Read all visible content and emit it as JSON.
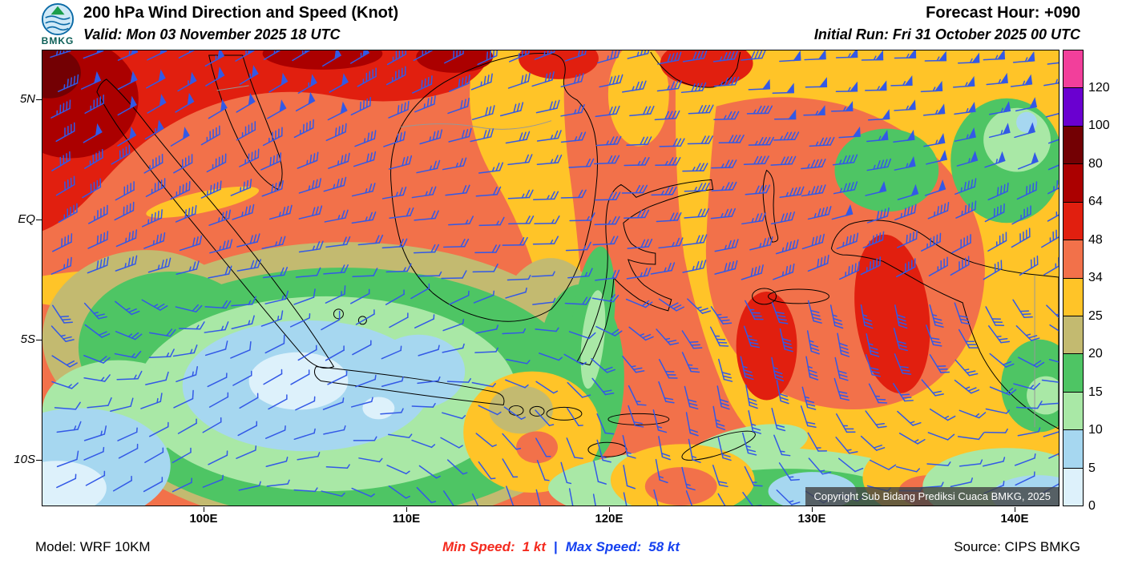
{
  "header": {
    "logo_text": "BMKG",
    "title": "200 hPa Wind Direction and Speed (Knot)",
    "valid": "Valid: Mon 03 November 2025 18 UTC",
    "forecast_hour": "Forecast Hour: +090",
    "initial_run": "Initial Run: Fri 31 October 2025 00 UTC"
  },
  "map": {
    "lat_labels": [
      "5N",
      "EQ",
      "5S",
      "10S"
    ],
    "lon_labels": [
      "100E",
      "110E",
      "120E",
      "130E",
      "140E"
    ],
    "copyright": "Copyright Sub Bidang Prediksi Cuaca BMKG, 2025",
    "barb_color": "#3359E6"
  },
  "colorbar": {
    "unit": "Knot",
    "levels_top_down": [
      "120",
      "100",
      "80",
      "64",
      "48",
      "34",
      "25",
      "20",
      "15",
      "10",
      "5",
      "0"
    ],
    "colors_top_down": [
      "#F23F9B",
      "#6A00D0",
      "#730003",
      "#AB0000",
      "#E11F0F",
      "#F2714A",
      "#FFC428",
      "#C3BA70",
      "#4EC564",
      "#A9E8A6",
      "#A6D7F0",
      "#DDF1FB"
    ]
  },
  "footer": {
    "model": "Model: WRF 10KM",
    "min_label": "Min Speed:",
    "min_value": "1 kt",
    "separator": "|",
    "max_label": "Max Speed:",
    "max_value": "58 kt",
    "source": "Source: CIPS BMKG",
    "min_color": "#F42A1E",
    "max_color": "#1440F0"
  }
}
